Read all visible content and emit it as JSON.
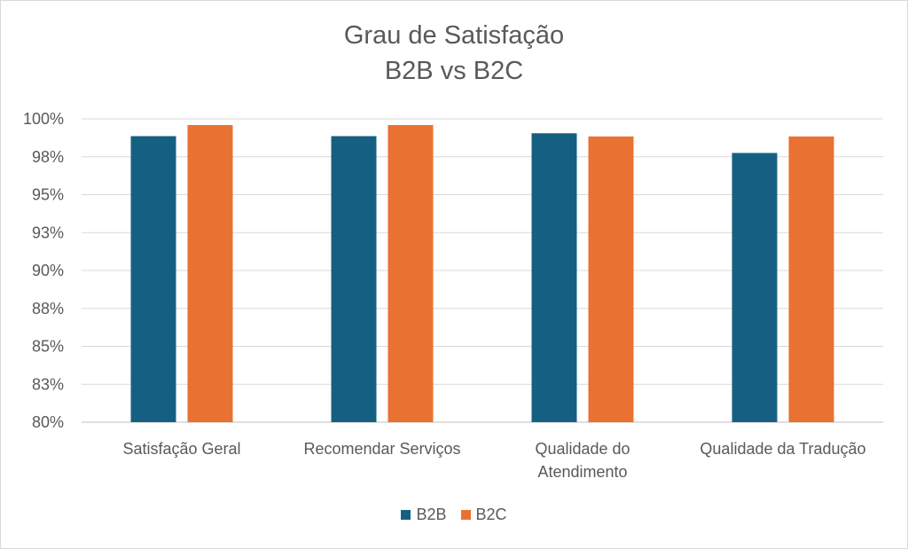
{
  "chart_data": {
    "type": "bar",
    "title_lines": [
      "Grau de Satisfação",
      "B2B vs B2C"
    ],
    "categories": [
      [
        "Satisfação Geral"
      ],
      [
        "Recomendar Serviços"
      ],
      [
        "Qualidade do",
        "Atendimento"
      ],
      [
        "Qualidade da Tradução"
      ]
    ],
    "series": [
      {
        "name": "B2B",
        "color": "#156082",
        "values": [
          98.86,
          98.86,
          99.05,
          97.75
        ]
      },
      {
        "name": "B2C",
        "color": "#E97132",
        "values": [
          99.59,
          99.59,
          98.84,
          98.84
        ]
      }
    ],
    "ylim": [
      80,
      100
    ],
    "yticks": [
      80,
      82.5,
      85,
      87.5,
      90,
      92.5,
      95,
      97.5,
      100
    ],
    "ytick_labels": [
      "80%",
      "83%",
      "85%",
      "88%",
      "90%",
      "93%",
      "95%",
      "98%",
      "100%"
    ],
    "grid": true,
    "legend_position": "bottom"
  }
}
